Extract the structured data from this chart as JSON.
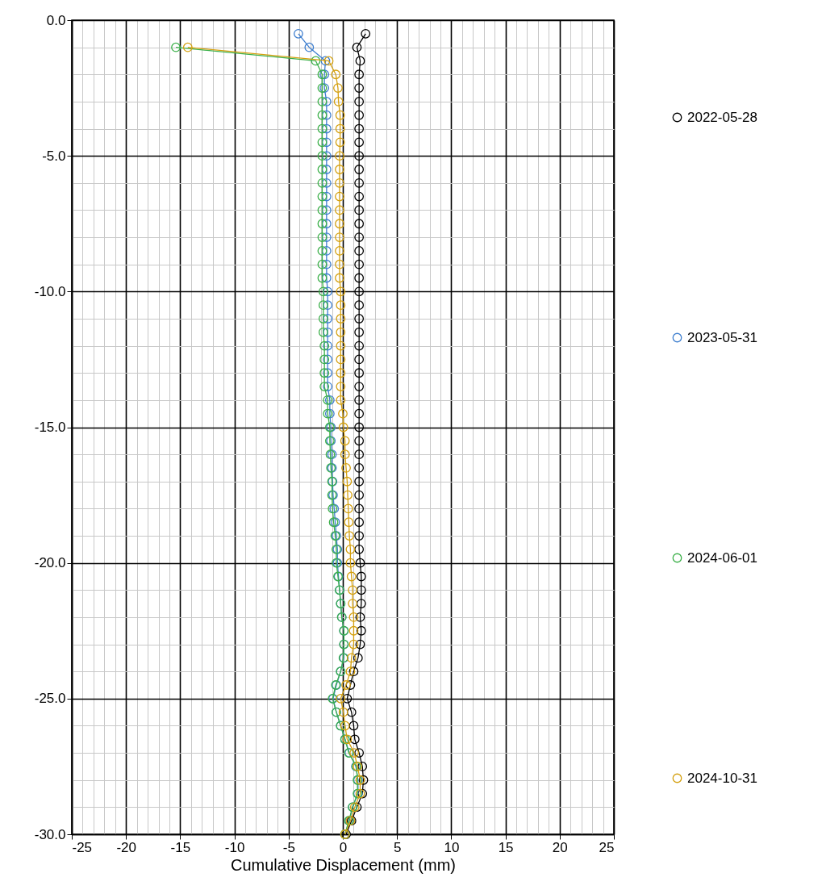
{
  "chart_data": {
    "type": "line",
    "xlabel": "Cumulative Displacement (mm)",
    "xlim": [
      -25,
      25
    ],
    "xticks": [
      -25,
      -20,
      -15,
      -10,
      -5,
      0,
      5,
      10,
      15,
      20,
      25
    ],
    "ylim": [
      -30,
      0
    ],
    "yticks": [
      {
        "value": 0,
        "label": "0.0"
      },
      {
        "value": -5,
        "label": "-5.0"
      },
      {
        "value": -10,
        "label": "-10.0"
      },
      {
        "value": -15,
        "label": "-15.0"
      },
      {
        "value": -20,
        "label": "-20.0"
      },
      {
        "value": -25,
        "label": "-25.0"
      },
      {
        "value": -30,
        "label": "-30.0"
      }
    ],
    "grid": true,
    "legend": "right",
    "marker": "circle",
    "line_style": "solid",
    "series": [
      {
        "name": "2022-05-28",
        "color": "#000000",
        "x": [
          2.1,
          1.3,
          1.6,
          1.5,
          1.5,
          1.5,
          1.5,
          1.5,
          1.5,
          1.5,
          1.5,
          1.5,
          1.5,
          1.5,
          1.5,
          1.5,
          1.5,
          1.5,
          1.5,
          1.5,
          1.5,
          1.5,
          1.5,
          1.5,
          1.5,
          1.5,
          1.5,
          1.5,
          1.5,
          1.5,
          1.5,
          1.5,
          1.5,
          1.5,
          1.5,
          1.5,
          1.5,
          1.5,
          1.5,
          1.6,
          1.7,
          1.7,
          1.7,
          1.6,
          1.7,
          1.6,
          1.4,
          1.0,
          0.7,
          0.4,
          0.8,
          1.0,
          1.1,
          1.5,
          1.8,
          1.9,
          1.8,
          1.3,
          0.8,
          0.3
        ],
        "values": [
          -0.5,
          -1,
          -1.5,
          -2,
          -2.5,
          -3,
          -3.5,
          -4,
          -4.5,
          -5,
          -5.5,
          -6,
          -6.5,
          -7,
          -7.5,
          -8,
          -8.5,
          -9,
          -9.5,
          -10,
          -10.5,
          -11,
          -11.5,
          -12,
          -12.5,
          -13,
          -13.5,
          -14,
          -14.5,
          -15,
          -15.5,
          -16,
          -16.5,
          -17,
          -17.5,
          -18,
          -18.5,
          -19,
          -19.5,
          -20,
          -20.5,
          -21,
          -21.5,
          -22,
          -22.5,
          -23,
          -23.5,
          -24,
          -24.5,
          -25,
          -25.5,
          -26,
          -26.5,
          -27,
          -27.5,
          -28,
          -28.5,
          -29,
          -29.5,
          -30
        ]
      },
      {
        "name": "2023-05-31",
        "color": "#3f7fcf",
        "x": [
          -4.1,
          -3.1,
          -1.6,
          -1.7,
          -1.7,
          -1.5,
          -1.5,
          -1.5,
          -1.5,
          -1.5,
          -1.5,
          -1.5,
          -1.5,
          -1.5,
          -1.5,
          -1.5,
          -1.5,
          -1.5,
          -1.5,
          -1.4,
          -1.4,
          -1.4,
          -1.4,
          -1.4,
          -1.4,
          -1.4,
          -1.4,
          -1.2,
          -1.2,
          -1.1,
          -1.1,
          -1.0,
          -1.0,
          -0.95,
          -0.9,
          -0.8,
          -0.7,
          -0.6,
          -0.5,
          -0.5,
          -0.4,
          -0.3,
          -0.2,
          -0.1,
          0.1,
          0.1,
          0.1,
          -0.2,
          -0.6,
          -0.9,
          -0.6,
          -0.2,
          0.2,
          0.6,
          1.2,
          1.4,
          1.4,
          0.9,
          0.6,
          0.2
        ],
        "values": [
          -0.5,
          -1,
          -1.5,
          -2,
          -2.5,
          -3,
          -3.5,
          -4,
          -4.5,
          -5,
          -5.5,
          -6,
          -6.5,
          -7,
          -7.5,
          -8,
          -8.5,
          -9,
          -9.5,
          -10,
          -10.5,
          -11,
          -11.5,
          -12,
          -12.5,
          -13,
          -13.5,
          -14,
          -14.5,
          -15,
          -15.5,
          -16,
          -16.5,
          -17,
          -17.5,
          -18,
          -18.5,
          -19,
          -19.5,
          -20,
          -20.5,
          -21,
          -21.5,
          -22,
          -22.5,
          -23,
          -23.5,
          -24,
          -24.5,
          -25,
          -25.5,
          -26,
          -26.5,
          -27,
          -27.5,
          -28,
          -28.5,
          -29,
          -29.5,
          -30
        ]
      },
      {
        "name": "2024-06-01",
        "color": "#3cb04a",
        "x": [
          -15.4,
          -2.5,
          -1.9,
          -1.9,
          -1.9,
          -1.9,
          -1.9,
          -1.9,
          -1.9,
          -1.9,
          -1.9,
          -1.9,
          -1.9,
          -1.9,
          -1.9,
          -1.9,
          -1.9,
          -1.9,
          -1.8,
          -1.8,
          -1.8,
          -1.8,
          -1.7,
          -1.7,
          -1.7,
          -1.7,
          -1.4,
          -1.4,
          -1.2,
          -1.2,
          -1.15,
          -1.1,
          -1.0,
          -1.0,
          -0.95,
          -0.85,
          -0.7,
          -0.6,
          -0.6,
          -0.45,
          -0.3,
          -0.2,
          -0.1,
          0.1,
          0.1,
          0.05,
          -0.2,
          -0.65,
          -0.95,
          -0.6,
          -0.2,
          0.2,
          0.55,
          1.25,
          1.35,
          1.35,
          0.9,
          0.55,
          0.2
        ],
        "values": [
          -1,
          -1.5,
          -2,
          -2.5,
          -3,
          -3.5,
          -4,
          -4.5,
          -5,
          -5.5,
          -6,
          -6.5,
          -7,
          -7.5,
          -8,
          -8.5,
          -9,
          -9.5,
          -10,
          -10.5,
          -11,
          -11.5,
          -12,
          -12.5,
          -13,
          -13.5,
          -14,
          -14.5,
          -15,
          -15.5,
          -16,
          -16.5,
          -17,
          -17.5,
          -18,
          -18.5,
          -19,
          -19.5,
          -20,
          -20.5,
          -21,
          -21.5,
          -22,
          -22.5,
          -23,
          -23.5,
          -24,
          -24.5,
          -25,
          -25.5,
          -26,
          -26.5,
          -27,
          -27.5,
          -28,
          -28.5,
          -29,
          -29.5,
          -30
        ]
      },
      {
        "name": "2024-10-31",
        "color": "#d4a010",
        "x": [
          -14.3,
          -1.3,
          -0.65,
          -0.45,
          -0.4,
          -0.25,
          -0.25,
          -0.25,
          -0.3,
          -0.3,
          -0.3,
          -0.3,
          -0.3,
          -0.3,
          -0.3,
          -0.3,
          -0.3,
          -0.3,
          -0.2,
          -0.2,
          -0.2,
          -0.2,
          -0.2,
          -0.2,
          -0.2,
          -0.2,
          -0.2,
          0,
          0.05,
          0.2,
          0.2,
          0.3,
          0.4,
          0.45,
          0.5,
          0.55,
          0.6,
          0.7,
          0.7,
          0.8,
          0.9,
          0.9,
          1.0,
          1.0,
          1.0,
          0.8,
          0.7,
          0.3,
          -0.2,
          0.05,
          0.2,
          0.4,
          1.05,
          1.35,
          1.6,
          1.6,
          1.1,
          0.7,
          0.2
        ],
        "values": [
          -1,
          -1.5,
          -2,
          -2.5,
          -3,
          -3.5,
          -4,
          -4.5,
          -5,
          -5.5,
          -6,
          -6.5,
          -7,
          -7.5,
          -8,
          -8.5,
          -9,
          -9.5,
          -10,
          -10.5,
          -11,
          -11.5,
          -12,
          -12.5,
          -13,
          -13.5,
          -14,
          -14.5,
          -15,
          -15.5,
          -16,
          -16.5,
          -17,
          -17.5,
          -18,
          -18.5,
          -19,
          -19.5,
          -20,
          -20.5,
          -21,
          -21.5,
          -22,
          -22.5,
          -23,
          -23.5,
          -24,
          -24.5,
          -25,
          -25.5,
          -26,
          -26.5,
          -27,
          -27.5,
          -28,
          -28.5,
          -29,
          -29.5,
          -30
        ]
      }
    ]
  }
}
